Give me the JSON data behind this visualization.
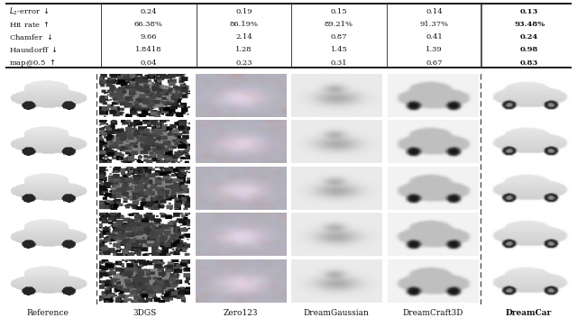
{
  "table_rows": [
    {
      "metric": "$L_2$-error $\\downarrow$",
      "values": [
        "0.24",
        "0.19",
        "0.15",
        "0.14",
        "0.13"
      ],
      "bold_col": 4
    },
    {
      "metric": "Hit rate $\\uparrow$",
      "values": [
        "66.38%",
        "86.19%",
        "89.21%",
        "91.37%",
        "93.48%"
      ],
      "bold_col": 4
    },
    {
      "metric": "Chamfer $\\downarrow$",
      "values": [
        "9.66",
        "2.14",
        "0.87",
        "0.41",
        "0.24"
      ],
      "bold_col": 4
    },
    {
      "metric": "Hausdorff $\\downarrow$",
      "values": [
        "1.8418",
        "1.28",
        "1.45",
        "1.39",
        "0.98"
      ],
      "bold_col": 4
    },
    {
      "metric": "map@0.5 $\\uparrow$",
      "values": [
        "0.04",
        "0.23",
        "0.31",
        "0.67",
        "0.83"
      ],
      "bold_col": 4
    }
  ],
  "col_labels": [
    "Reference",
    "3DGS",
    "Zero123",
    "DreamGaussian",
    "DreamCraft3D",
    "DreamCar"
  ],
  "bg_color": "#ffffff",
  "table_line_color": "#222222",
  "grid_rows": 5,
  "grid_cols": 6
}
